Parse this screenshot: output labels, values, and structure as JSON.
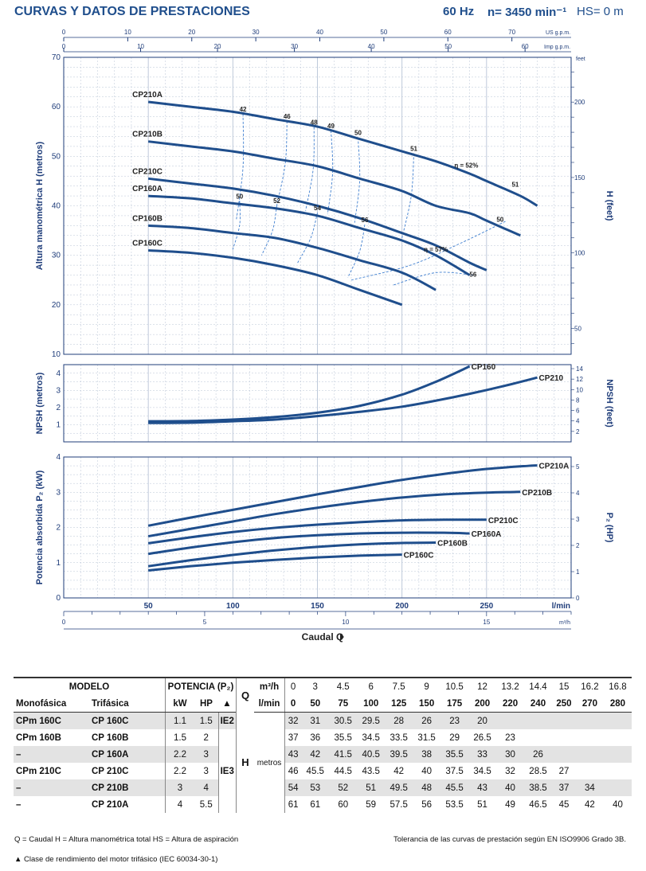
{
  "header": {
    "title": "CURVAS Y DATOS DE PRESTACIONES",
    "freq": "60 Hz",
    "speed": "n= 3450 min⁻¹",
    "hs": "HS= 0 m"
  },
  "colors": {
    "curve": "#1f4e8c",
    "grid": "#b8c4d6",
    "efficiency": "#3f7fd0"
  },
  "chart_data": [
    {
      "type": "line",
      "title": "",
      "ylabel": "Altura manométrica H (metros)",
      "ylabel_right": "H (feet)",
      "xlabel": "Caudal Q",
      "xunit": "l/min",
      "xlim": [
        0,
        300
      ],
      "ylim": [
        10,
        70
      ],
      "yticks": [
        10,
        20,
        30,
        40,
        50,
        60,
        70
      ],
      "xticks_top_us": [
        0,
        10,
        20,
        30,
        40,
        50,
        60,
        70
      ],
      "xticks_top_us_label": "US g.p.m.",
      "xticks_top_imp": [
        0,
        10,
        20,
        30,
        40,
        50,
        60
      ],
      "xticks_top_imp_label": "Imp g.p.m.",
      "yticks_right_feet": [
        50,
        100,
        150,
        200
      ],
      "yticks_right_unit": "feet",
      "x": [
        50,
        75,
        100,
        125,
        150,
        175,
        200,
        220,
        240,
        250,
        270,
        280
      ],
      "series": [
        {
          "name": "CP210A",
          "x": [
            50,
            75,
            100,
            125,
            150,
            175,
            200,
            220,
            240,
            250,
            270,
            280
          ],
          "values": [
            61,
            60,
            59,
            57.5,
            56,
            53.5,
            51,
            49,
            46.5,
            45,
            42,
            40
          ]
        },
        {
          "name": "CP210B",
          "x": [
            50,
            75,
            100,
            125,
            150,
            175,
            200,
            220,
            240,
            250,
            270
          ],
          "values": [
            53,
            52,
            51,
            49.5,
            48,
            45.5,
            43,
            40,
            38.5,
            37,
            34
          ]
        },
        {
          "name": "CP210C",
          "x": [
            50,
            75,
            100,
            125,
            150,
            175,
            200,
            220,
            240,
            250
          ],
          "values": [
            45.5,
            44.5,
            43.5,
            42,
            40,
            37.5,
            34.5,
            32,
            28.5,
            27
          ]
        },
        {
          "name": "CP160A",
          "x": [
            50,
            75,
            100,
            125,
            150,
            175,
            200,
            220,
            240
          ],
          "values": [
            42,
            41.5,
            40.5,
            39.5,
            38,
            35.5,
            33,
            30,
            26
          ]
        },
        {
          "name": "CP160B",
          "x": [
            50,
            75,
            100,
            125,
            150,
            175,
            200,
            220
          ],
          "values": [
            36,
            35.5,
            34.5,
            33.5,
            31.5,
            29,
            26.5,
            23
          ]
        },
        {
          "name": "CP160C",
          "x": [
            50,
            75,
            100,
            125,
            150,
            175,
            200
          ],
          "values": [
            31,
            30.5,
            29.5,
            28,
            26,
            23,
            20
          ]
        }
      ],
      "efficiency_labels": [
        {
          "text": "42",
          "x": 106,
          "y": 58.6
        },
        {
          "text": "46",
          "x": 132,
          "y": 57.1
        },
        {
          "text": "48",
          "x": 148,
          "y": 55.9
        },
        {
          "text": "49",
          "x": 158,
          "y": 55.2
        },
        {
          "text": "50",
          "x": 174,
          "y": 53.8
        },
        {
          "text": "51",
          "x": 207,
          "y": 50.6
        },
        {
          "text": "η = 52%",
          "x": 238,
          "y": 47.2
        },
        {
          "text": "51",
          "x": 267,
          "y": 43.4
        },
        {
          "text": "50",
          "x": 104,
          "y": 41.0
        },
        {
          "text": "52",
          "x": 126,
          "y": 40.1
        },
        {
          "text": "54",
          "x": 150,
          "y": 38.6
        },
        {
          "text": "56",
          "x": 178,
          "y": 36.2
        },
        {
          "text": "50",
          "x": 258,
          "y": 36.3
        },
        {
          "text": "η = 57%",
          "x": 220,
          "y": 30.3
        },
        {
          "text": "56",
          "x": 242,
          "y": 25.2
        }
      ]
    },
    {
      "type": "line",
      "title": "",
      "ylabel": "NPSH (metros)",
      "ylabel_right": "NPSH (feet)",
      "xlim": [
        0,
        300
      ],
      "ylim": [
        0,
        4.5
      ],
      "yticks": [
        1,
        2,
        3,
        4
      ],
      "yticks_right_feet": [
        2,
        4,
        6,
        8,
        10,
        12,
        14
      ],
      "series": [
        {
          "name": "CP160",
          "x": [
            50,
            75,
            100,
            125,
            150,
            175,
            200,
            220,
            240
          ],
          "values": [
            1.2,
            1.22,
            1.3,
            1.45,
            1.7,
            2.1,
            2.75,
            3.5,
            4.4
          ]
        },
        {
          "name": "CP210",
          "x": [
            50,
            75,
            100,
            125,
            150,
            175,
            200,
            220,
            240,
            260,
            280
          ],
          "values": [
            1.1,
            1.12,
            1.2,
            1.3,
            1.5,
            1.75,
            2.05,
            2.4,
            2.8,
            3.25,
            3.75
          ]
        }
      ]
    },
    {
      "type": "line",
      "title": "",
      "ylabel": "Potencia absorbida P₂ (kW)",
      "ylabel_right": "P₂ (HP)",
      "xlabel": "Caudal Q",
      "xlim": [
        0,
        300
      ],
      "ylim": [
        0,
        4
      ],
      "yticks": [
        0,
        1,
        2,
        3,
        4
      ],
      "yticks_right_hp": [
        0,
        1,
        2,
        3,
        4,
        5
      ],
      "xticks_lmin": [
        50,
        100,
        150,
        200,
        250
      ],
      "xticks_lmin_unit": "l/min",
      "xticks_m3h": [
        0,
        5,
        10,
        15
      ],
      "xticks_m3h_unit": "m³/h",
      "series": [
        {
          "name": "CP210A",
          "x": [
            50,
            75,
            100,
            125,
            150,
            175,
            200,
            225,
            250,
            275,
            280
          ],
          "values": [
            2.05,
            2.28,
            2.5,
            2.72,
            2.94,
            3.15,
            3.35,
            3.52,
            3.66,
            3.75,
            3.76
          ]
        },
        {
          "name": "CP210B",
          "x": [
            50,
            75,
            100,
            125,
            150,
            175,
            200,
            225,
            250,
            270
          ],
          "values": [
            1.75,
            1.96,
            2.17,
            2.38,
            2.56,
            2.72,
            2.85,
            2.94,
            2.99,
            3.01
          ]
        },
        {
          "name": "CP210C",
          "x": [
            50,
            75,
            100,
            125,
            150,
            175,
            200,
            225,
            250
          ],
          "values": [
            1.55,
            1.72,
            1.87,
            1.99,
            2.08,
            2.15,
            2.2,
            2.22,
            2.22
          ]
        },
        {
          "name": "CP160A",
          "x": [
            50,
            75,
            100,
            125,
            150,
            175,
            200,
            225,
            240
          ],
          "values": [
            1.25,
            1.43,
            1.58,
            1.7,
            1.78,
            1.83,
            1.85,
            1.85,
            1.83
          ]
        },
        {
          "name": "CP160B",
          "x": [
            50,
            75,
            100,
            125,
            150,
            175,
            200,
            220
          ],
          "values": [
            0.9,
            1.07,
            1.22,
            1.35,
            1.45,
            1.52,
            1.56,
            1.57
          ]
        },
        {
          "name": "CP160C",
          "x": [
            50,
            75,
            100,
            125,
            150,
            175,
            200
          ],
          "values": [
            0.78,
            0.9,
            1.0,
            1.08,
            1.15,
            1.2,
            1.23
          ]
        }
      ],
      "series_labels": [
        "CP210A",
        "CP210B",
        "CP210C",
        "CP160A",
        "CP160B",
        "CP160C"
      ]
    }
  ],
  "table": {
    "h_modelo": "MODELO",
    "h_potencia": "POTENCIA (P₂)",
    "h_q": "Q",
    "h_m3h": "m³/h",
    "h_lmin": "l/min",
    "h_mono": "Monofásica",
    "h_tri": "Trifásica",
    "h_kw": "kW",
    "h_hp": "HP",
    "h_ie": "▲",
    "h_h": "H",
    "h_metros": "metros",
    "q_m3h": [
      "0",
      "3",
      "4.5",
      "6",
      "7.5",
      "9",
      "10.5",
      "12",
      "13.2",
      "14.4",
      "15",
      "16.2",
      "16.8"
    ],
    "q_lmin": [
      "0",
      "50",
      "75",
      "100",
      "125",
      "150",
      "175",
      "200",
      "220",
      "240",
      "250",
      "270",
      "280"
    ],
    "ie2": "IE2",
    "ie3": "IE3",
    "rows": [
      {
        "mono": "CPm 160C",
        "tri": "CP 160C",
        "kw": "1.1",
        "hp": "1.5",
        "h": [
          "32",
          "31",
          "30.5",
          "29.5",
          "28",
          "26",
          "23",
          "20",
          "",
          "",
          "",
          "",
          ""
        ]
      },
      {
        "mono": "CPm 160B",
        "tri": "CP 160B",
        "kw": "1.5",
        "hp": "2",
        "h": [
          "37",
          "36",
          "35.5",
          "34.5",
          "33.5",
          "31.5",
          "29",
          "26.5",
          "23",
          "",
          "",
          "",
          ""
        ]
      },
      {
        "mono": "–",
        "tri": "CP 160A",
        "kw": "2.2",
        "hp": "3",
        "h": [
          "43",
          "42",
          "41.5",
          "40.5",
          "39.5",
          "38",
          "35.5",
          "33",
          "30",
          "26",
          "",
          "",
          ""
        ]
      },
      {
        "mono": "CPm 210C",
        "tri": "CP 210C",
        "kw": "2.2",
        "hp": "3",
        "h": [
          "46",
          "45.5",
          "44.5",
          "43.5",
          "42",
          "40",
          "37.5",
          "34.5",
          "32",
          "28.5",
          "27",
          "",
          ""
        ]
      },
      {
        "mono": "–",
        "tri": "CP 210B",
        "kw": "3",
        "hp": "4",
        "h": [
          "54",
          "53",
          "52",
          "51",
          "49.5",
          "48",
          "45.5",
          "43",
          "40",
          "38.5",
          "37",
          "34",
          ""
        ]
      },
      {
        "mono": "–",
        "tri": "CP 210A",
        "kw": "4",
        "hp": "5.5",
        "h": [
          "61",
          "61",
          "60",
          "59",
          "57.5",
          "56",
          "53.5",
          "51",
          "49",
          "46.5",
          "45",
          "42",
          "40"
        ]
      }
    ]
  },
  "footer": {
    "legend": "Q = Caudal   H = Altura manométrica total   HS = Altura de aspiración",
    "tolerance": "Tolerancia de las curvas de prestación según EN ISO9906 Grado 3B.",
    "motor_class": "▲  Clase de rendimiento del motor trifásico (IEC 60034-30-1)"
  }
}
